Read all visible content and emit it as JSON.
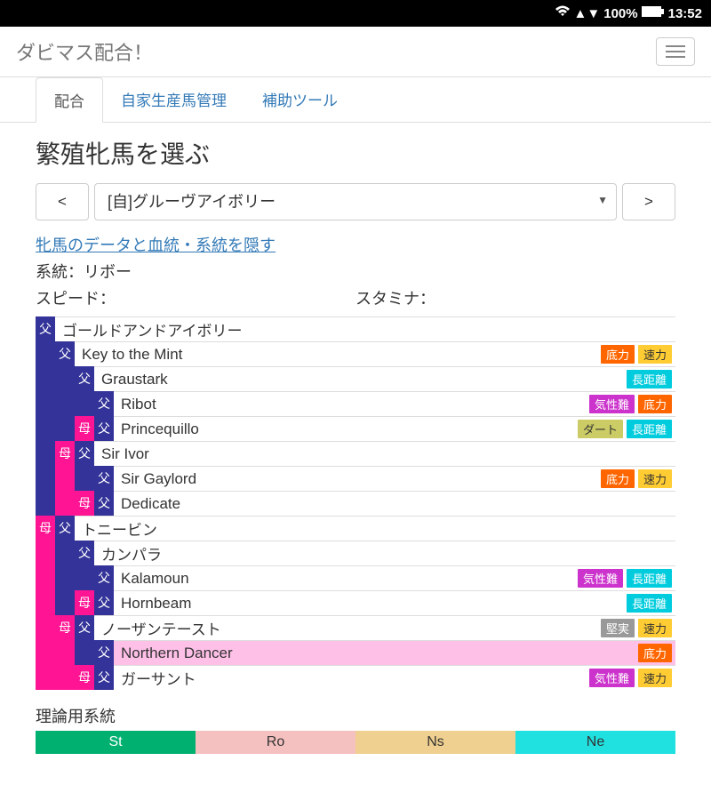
{
  "statusBar": {
    "battery": "100%",
    "time": "13:52"
  },
  "header": {
    "title": "ダビマス配合！"
  },
  "tabs": [
    {
      "label": "配合",
      "active": true
    },
    {
      "label": "自家生産馬管理",
      "active": false
    },
    {
      "label": "補助ツール",
      "active": false
    }
  ],
  "section": {
    "title": "繁殖牝馬を選ぶ",
    "prev": "<",
    "next": ">",
    "selected": "[自]グルーヴアイボリー",
    "toggleLink": "牝馬のデータと血統・系統を隠す",
    "lineage": "系統：リボー",
    "speed": "スピード：",
    "stamina": "スタミナ："
  },
  "labels": {
    "m": "父",
    "f": "母"
  },
  "pedigree": [
    {
      "segs": [
        "m"
      ],
      "name": "ゴールドアンドアイボリー",
      "badges": []
    },
    {
      "segs": [
        "blank-m",
        "m"
      ],
      "name": "Key to the Mint",
      "badges": [
        [
          "底力",
          "b-orange"
        ],
        [
          "速力",
          "b-yellow"
        ]
      ]
    },
    {
      "segs": [
        "blank-m",
        "blank-m",
        "m"
      ],
      "name": "Graustark",
      "badges": [
        [
          "長距離",
          "b-cyan"
        ]
      ]
    },
    {
      "segs": [
        "blank-m",
        "blank-m",
        "blank-m",
        "m"
      ],
      "name": "Ribot",
      "badges": [
        [
          "気性難",
          "b-magenta"
        ],
        [
          "底力",
          "b-orange"
        ]
      ]
    },
    {
      "segs": [
        "blank-m",
        "blank-m",
        "f",
        "m"
      ],
      "name": "Princequillo",
      "badges": [
        [
          "ダート",
          "b-khaki"
        ],
        [
          "長距離",
          "b-cyan"
        ]
      ]
    },
    {
      "segs": [
        "blank-m",
        "f",
        "m"
      ],
      "name": "Sir Ivor",
      "badges": []
    },
    {
      "segs": [
        "blank-m",
        "blank-f",
        "blank-m",
        "m"
      ],
      "name": "Sir Gaylord",
      "badges": [
        [
          "底力",
          "b-orange"
        ],
        [
          "速力",
          "b-yellow"
        ]
      ]
    },
    {
      "segs": [
        "blank-m",
        "blank-f",
        "f",
        "m"
      ],
      "name": "Dedicate",
      "badges": []
    },
    {
      "segs": [
        "f",
        "m"
      ],
      "name": "トニービン",
      "badges": []
    },
    {
      "segs": [
        "blank-f",
        "blank-m",
        "m"
      ],
      "name": "カンパラ",
      "badges": []
    },
    {
      "segs": [
        "blank-f",
        "blank-m",
        "blank-m",
        "m"
      ],
      "name": "Kalamoun",
      "badges": [
        [
          "気性難",
          "b-magenta"
        ],
        [
          "長距離",
          "b-cyan"
        ]
      ]
    },
    {
      "segs": [
        "blank-f",
        "blank-m",
        "f",
        "m"
      ],
      "name": "Hornbeam",
      "badges": [
        [
          "長距離",
          "b-cyan"
        ]
      ]
    },
    {
      "segs": [
        "blank-f",
        "f",
        "m"
      ],
      "name": "ノーザンテースト",
      "badges": [
        [
          "堅実",
          "b-gray"
        ],
        [
          "速力",
          "b-yellow"
        ]
      ]
    },
    {
      "segs": [
        "blank-f",
        "blank-f",
        "blank-m",
        "m"
      ],
      "name": "Northern Dancer",
      "hl": true,
      "badges": [
        [
          "底力",
          "b-orange"
        ]
      ]
    },
    {
      "segs": [
        "blank-f",
        "blank-f",
        "f",
        "m"
      ],
      "name": "ガーサント",
      "badges": [
        [
          "気性難",
          "b-magenta"
        ],
        [
          "速力",
          "b-yellow"
        ]
      ]
    }
  ],
  "theory": {
    "title": "理論用系統",
    "segs": [
      {
        "label": "St",
        "cls": "th-st"
      },
      {
        "label": "Ro",
        "cls": "th-ro"
      },
      {
        "label": "Ns",
        "cls": "th-ns"
      },
      {
        "label": "Ne",
        "cls": "th-ne"
      }
    ]
  }
}
